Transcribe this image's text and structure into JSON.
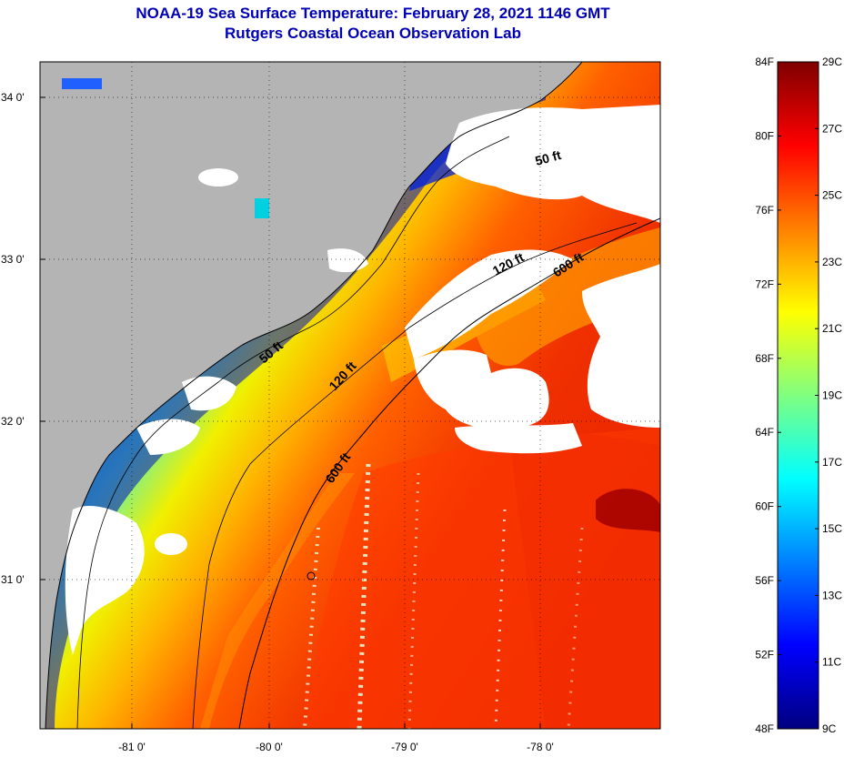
{
  "header": {
    "title": "NOAA-19 Sea Surface Temperature:  February 28, 2021 1146 GMT",
    "subtitle": "Rutgers Coastal Ocean Observation Lab"
  },
  "map": {
    "longitude_ticks": [
      "-81 0'",
      "-80 0'",
      "-79 0'",
      "-78 0'"
    ],
    "latitude_ticks": [
      "34 0'",
      "33 0'",
      "32 0'",
      "31 0'"
    ],
    "land_color": "#b4b4b4",
    "cloud_color": "#ffffff",
    "isobath_labels": [
      {
        "text": "50 ft",
        "isobath": "50 ft"
      },
      {
        "text": "120 ft",
        "isobath": "120 ft"
      },
      {
        "text": "600 ft",
        "isobath": "600 ft"
      },
      {
        "text": "50 ft",
        "isobath": "50 ft"
      },
      {
        "text": "120 ft",
        "isobath": "120 ft"
      },
      {
        "text": "600 ft",
        "isobath": "600 ft"
      }
    ]
  },
  "colorbar": {
    "fahrenheit_labels": [
      "84F",
      "80F",
      "76F",
      "72F",
      "68F",
      "64F",
      "60F",
      "56F",
      "52F",
      "48F"
    ],
    "celsius_labels": [
      "29C",
      "27C",
      "25C",
      "23C",
      "21C",
      "19C",
      "17C",
      "15C",
      "13C",
      "11C",
      "9C"
    ],
    "range_f": [
      48,
      84
    ],
    "range_c": [
      9,
      29
    ],
    "colormap": [
      "#00007f",
      "#0000ff",
      "#0080ff",
      "#00ffff",
      "#80ff80",
      "#ffff00",
      "#ff8000",
      "#ff0000",
      "#7f0000"
    ]
  }
}
